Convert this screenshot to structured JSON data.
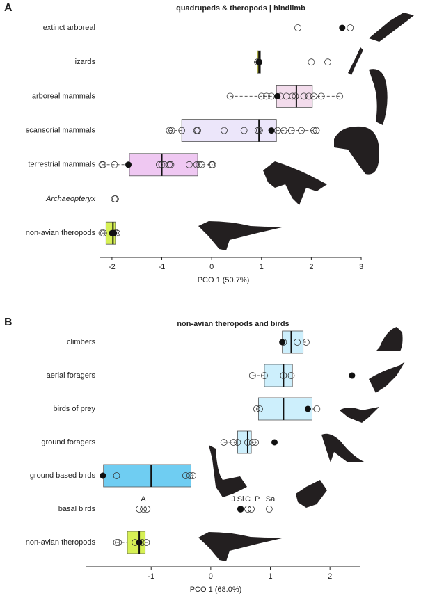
{
  "chart_data": [
    {
      "type": "box",
      "panel": "A",
      "title": "quadrupeds & theropods | hindlimb",
      "xlabel": "PCO 1 (50.7%)",
      "xlim": [
        -2.25,
        3
      ],
      "xticks": [
        -2,
        -1,
        0,
        1,
        2,
        3
      ],
      "categories": [
        "extinct arboreal",
        "lizards",
        "arboreal mammals",
        "scansorial mammals",
        "terrestrial mammals",
        "Archaeopteryx",
        "non-avian theropods"
      ],
      "italic_categories": [
        5
      ],
      "boxes": [
        null,
        {
          "q1": 0.92,
          "median": 0.95,
          "q3": 0.98,
          "lo": 0.9,
          "hi": 0.98,
          "color": "#e6e633"
        },
        {
          "q1": 1.3,
          "median": 1.7,
          "q3": 2.02,
          "lo": 0.37,
          "hi": 2.57,
          "color": "#f3dcec"
        },
        {
          "q1": -0.6,
          "median": 0.95,
          "q3": 1.3,
          "lo": -0.85,
          "hi": 2.1,
          "color": "#ece6fa"
        },
        {
          "q1": -1.65,
          "median": -1.0,
          "q3": -0.28,
          "lo": -2.2,
          "hi": 0.02,
          "color": "#efc8f2"
        },
        null,
        {
          "q1": -2.12,
          "median": -1.98,
          "q3": -1.93,
          "lo": -2.2,
          "hi": -1.9,
          "color": "#d6f055"
        }
      ],
      "open": [
        [
          1.73,
          2.78
        ],
        [
          0.92,
          0.95,
          2.0,
          2.33
        ],
        [
          0.37,
          1.0,
          1.1,
          1.2,
          1.38,
          1.5,
          1.62,
          1.68,
          1.85,
          1.95,
          2.05,
          2.2,
          2.57
        ],
        [
          -0.85,
          -0.8,
          -0.6,
          -0.3,
          -0.28,
          0.25,
          0.65,
          0.93,
          0.96,
          1.32,
          1.45,
          1.6,
          1.8,
          2.05,
          2.1
        ],
        [
          -2.2,
          -2.18,
          -1.95,
          -1.05,
          -1.0,
          -0.95,
          -0.85,
          -0.82,
          -0.45,
          -0.3,
          -0.25,
          -0.2,
          0.0,
          0.02
        ],
        [
          -1.95,
          -1.93
        ],
        [
          -2.2,
          -2.17,
          -1.93,
          -1.9
        ]
      ],
      "filled": [
        [
          2.62
        ],
        [
          0.95
        ],
        [
          1.32
        ],
        [
          1.2
        ],
        [
          -1.67
        ],
        [],
        [
          -2.0,
          -1.96
        ]
      ],
      "annotations": []
    },
    {
      "type": "box",
      "panel": "B",
      "title": "non-avian theropods and birds",
      "xlabel": "PCO 1 (68.0%)",
      "xlim": [
        -2.1,
        2.5
      ],
      "xticks": [
        -1,
        0,
        1,
        2
      ],
      "categories": [
        "climbers",
        "aerial foragers",
        "birds of prey",
        "ground foragers",
        "ground based birds",
        "basal birds",
        "non-avian theropods"
      ],
      "italic_categories": [],
      "boxes": [
        {
          "q1": 1.2,
          "median": 1.35,
          "q3": 1.55,
          "lo": 1.2,
          "hi": 1.6,
          "color": "#cdeffc"
        },
        {
          "q1": 0.9,
          "median": 1.22,
          "q3": 1.37,
          "lo": 0.7,
          "hi": 1.37,
          "color": "#cdeffc"
        },
        {
          "q1": 0.8,
          "median": 1.22,
          "q3": 1.7,
          "lo": 0.77,
          "hi": 1.78,
          "color": "#cdeffc"
        },
        {
          "q1": 0.45,
          "median": 0.62,
          "q3": 0.68,
          "lo": 0.22,
          "hi": 0.78,
          "color": "#cdeffc"
        },
        {
          "q1": -1.8,
          "median": -1.0,
          "q3": -0.33,
          "lo": -1.83,
          "hi": -0.25,
          "color": "#6fcdf2"
        },
        null,
        {
          "q1": -1.4,
          "median": -1.2,
          "q3": -1.1,
          "lo": -1.58,
          "hi": -1.05,
          "color": "#d6f055"
        }
      ],
      "open": [
        [
          1.22,
          1.45,
          1.6
        ],
        [
          0.7,
          0.9,
          1.22,
          1.35
        ],
        [
          0.77,
          0.82,
          1.78
        ],
        [
          0.22,
          0.38,
          0.45,
          0.62,
          0.7,
          0.75
        ],
        [
          -1.58,
          -0.42,
          -0.35,
          -0.3
        ],
        [
          -1.2,
          -1.13,
          -1.07,
          0.5,
          0.62,
          0.68,
          0.98
        ],
        [
          -1.58,
          -1.55,
          -1.27,
          -1.15,
          -1.08
        ]
      ],
      "filled": [
        [
          1.2
        ],
        [
          2.37
        ],
        [
          1.63
        ],
        [
          1.07
        ],
        [
          -1.81
        ],
        [
          0.5
        ],
        [
          -1.2
        ]
      ],
      "annotations": [
        {
          "text": "A",
          "x": -1.13,
          "row": 5
        },
        {
          "text": "J",
          "x": 0.38,
          "row": 5
        },
        {
          "text": "Si",
          "x": 0.5,
          "row": 5
        },
        {
          "text": "C",
          "x": 0.62,
          "row": 5
        },
        {
          "text": "P",
          "x": 0.78,
          "row": 5
        },
        {
          "text": "Sa",
          "x": 1.0,
          "row": 5
        }
      ]
    }
  ]
}
